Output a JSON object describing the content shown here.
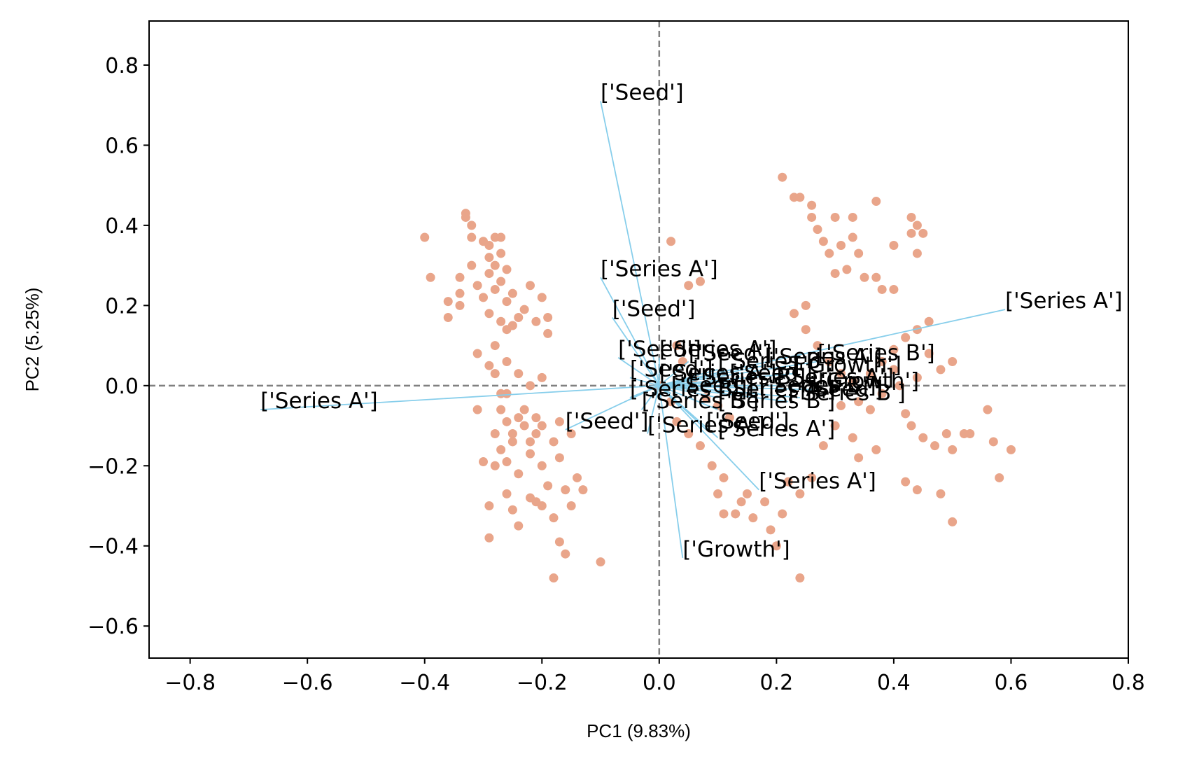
{
  "chart_data": {
    "type": "scatter",
    "xlabel": "PC1 (9.83%)",
    "ylabel": "PC2 (5.25%)",
    "xlim": [
      -0.87,
      0.8
    ],
    "ylim": [
      -0.68,
      0.91
    ],
    "xticks": [
      -0.8,
      -0.6,
      -0.4,
      -0.2,
      0.0,
      0.2,
      0.4,
      0.6,
      0.8
    ],
    "yticks": [
      -0.6,
      -0.4,
      -0.2,
      0.0,
      0.2,
      0.4,
      0.6,
      0.8
    ],
    "xtick_labels": [
      "−0.8",
      "−0.6",
      "−0.4",
      "−0.2",
      "0.0",
      "0.2",
      "0.4",
      "0.6",
      "0.8"
    ],
    "ytick_labels": [
      "−0.6",
      "−0.4",
      "−0.2",
      "0.0",
      "0.2",
      "0.4",
      "0.6",
      "0.8"
    ],
    "grid": false,
    "reference_lines": {
      "x": 0.0,
      "y": 0.0,
      "style": "dashed",
      "color": "#808080"
    },
    "colors": {
      "points": "#E9A58A",
      "vectors": "#87CEEB",
      "reference": "#808080"
    },
    "points": [
      [
        -0.4,
        0.37
      ],
      [
        -0.39,
        0.27
      ],
      [
        -0.36,
        0.21
      ],
      [
        -0.36,
        0.17
      ],
      [
        -0.34,
        0.23
      ],
      [
        -0.34,
        0.27
      ],
      [
        -0.34,
        0.2
      ],
      [
        -0.33,
        0.43
      ],
      [
        -0.33,
        0.42
      ],
      [
        -0.32,
        0.4
      ],
      [
        -0.32,
        0.37
      ],
      [
        -0.32,
        0.3
      ],
      [
        -0.31,
        0.25
      ],
      [
        -0.31,
        0.08
      ],
      [
        -0.3,
        0.36
      ],
      [
        -0.3,
        0.22
      ],
      [
        -0.29,
        0.35
      ],
      [
        -0.29,
        0.32
      ],
      [
        -0.29,
        0.28
      ],
      [
        -0.29,
        0.18
      ],
      [
        -0.29,
        0.05
      ],
      [
        -0.28,
        0.37
      ],
      [
        -0.28,
        0.3
      ],
      [
        -0.28,
        0.24
      ],
      [
        -0.28,
        0.1
      ],
      [
        -0.28,
        0.03
      ],
      [
        -0.27,
        0.37
      ],
      [
        -0.27,
        0.33
      ],
      [
        -0.27,
        0.26
      ],
      [
        -0.27,
        0.16
      ],
      [
        -0.26,
        0.29
      ],
      [
        -0.26,
        0.21
      ],
      [
        -0.26,
        0.14
      ],
      [
        -0.26,
        0.06
      ],
      [
        -0.25,
        0.23
      ],
      [
        -0.25,
        0.15
      ],
      [
        -0.24,
        0.17
      ],
      [
        -0.23,
        0.19
      ],
      [
        -0.22,
        0.25
      ],
      [
        -0.21,
        0.16
      ],
      [
        -0.2,
        0.22
      ],
      [
        -0.19,
        0.17
      ],
      [
        -0.19,
        0.13
      ],
      [
        -0.2,
        0.02
      ],
      [
        -0.22,
        0.0
      ],
      [
        -0.24,
        0.03
      ],
      [
        -0.26,
        -0.02
      ],
      [
        -0.27,
        -0.06
      ],
      [
        -0.28,
        -0.12
      ],
      [
        -0.27,
        -0.16
      ],
      [
        -0.26,
        -0.19
      ],
      [
        -0.25,
        -0.14
      ],
      [
        -0.24,
        -0.22
      ],
      [
        -0.23,
        -0.1
      ],
      [
        -0.22,
        -0.17
      ],
      [
        -0.21,
        -0.12
      ],
      [
        -0.2,
        -0.2
      ],
      [
        -0.19,
        -0.25
      ],
      [
        -0.18,
        -0.14
      ],
      [
        -0.17,
        -0.18
      ],
      [
        -0.16,
        -0.26
      ],
      [
        -0.15,
        -0.3
      ],
      [
        -0.14,
        -0.23
      ],
      [
        -0.13,
        -0.26
      ],
      [
        -0.28,
        -0.2
      ],
      [
        -0.29,
        -0.3
      ],
      [
        -0.3,
        -0.19
      ],
      [
        -0.31,
        -0.06
      ],
      [
        -0.29,
        -0.38
      ],
      [
        -0.26,
        -0.27
      ],
      [
        -0.25,
        -0.31
      ],
      [
        -0.24,
        -0.35
      ],
      [
        -0.22,
        -0.28
      ],
      [
        -0.21,
        -0.29
      ],
      [
        -0.2,
        -0.3
      ],
      [
        -0.18,
        -0.33
      ],
      [
        -0.17,
        -0.39
      ],
      [
        -0.16,
        -0.42
      ],
      [
        -0.18,
        -0.48
      ],
      [
        -0.1,
        -0.44
      ],
      [
        -0.23,
        -0.06
      ],
      [
        -0.2,
        -0.1
      ],
      [
        -0.17,
        -0.09
      ],
      [
        -0.15,
        -0.12
      ],
      [
        -0.24,
        -0.08
      ],
      [
        -0.26,
        -0.09
      ],
      [
        -0.25,
        -0.12
      ],
      [
        -0.22,
        -0.14
      ],
      [
        -0.21,
        -0.08
      ],
      [
        -0.27,
        -0.02
      ],
      [
        0.0,
        0.0
      ],
      [
        0.02,
        0.36
      ],
      [
        0.05,
        0.25
      ],
      [
        0.07,
        0.26
      ],
      [
        0.03,
        0.1
      ],
      [
        0.04,
        0.06
      ],
      [
        0.06,
        0.02
      ],
      [
        0.08,
        -0.03
      ],
      [
        0.1,
        -0.05
      ],
      [
        0.12,
        -0.08
      ],
      [
        0.02,
        -0.04
      ],
      [
        0.03,
        -0.09
      ],
      [
        0.05,
        -0.12
      ],
      [
        0.07,
        -0.15
      ],
      [
        0.09,
        -0.2
      ],
      [
        0.11,
        -0.23
      ],
      [
        0.1,
        -0.27
      ],
      [
        0.11,
        -0.32
      ],
      [
        0.13,
        -0.32
      ],
      [
        0.14,
        -0.29
      ],
      [
        0.15,
        -0.27
      ],
      [
        0.16,
        -0.33
      ],
      [
        0.19,
        -0.36
      ],
      [
        0.2,
        -0.4
      ],
      [
        0.18,
        -0.29
      ],
      [
        0.22,
        -0.24
      ],
      [
        0.24,
        -0.27
      ],
      [
        0.26,
        -0.23
      ],
      [
        0.24,
        -0.48
      ],
      [
        0.21,
        -0.32
      ],
      [
        0.21,
        0.52
      ],
      [
        0.23,
        0.47
      ],
      [
        0.24,
        0.47
      ],
      [
        0.26,
        0.45
      ],
      [
        0.26,
        0.42
      ],
      [
        0.27,
        0.39
      ],
      [
        0.28,
        0.36
      ],
      [
        0.3,
        0.42
      ],
      [
        0.31,
        0.35
      ],
      [
        0.33,
        0.42
      ],
      [
        0.33,
        0.37
      ],
      [
        0.34,
        0.33
      ],
      [
        0.32,
        0.29
      ],
      [
        0.3,
        0.28
      ],
      [
        0.35,
        0.27
      ],
      [
        0.37,
        0.27
      ],
      [
        0.38,
        0.24
      ],
      [
        0.4,
        0.24
      ],
      [
        0.37,
        0.46
      ],
      [
        0.4,
        0.35
      ],
      [
        0.43,
        0.38
      ],
      [
        0.43,
        0.42
      ],
      [
        0.44,
        0.4
      ],
      [
        0.45,
        0.38
      ],
      [
        0.44,
        0.33
      ],
      [
        0.29,
        0.33
      ],
      [
        0.25,
        0.2
      ],
      [
        0.23,
        0.18
      ],
      [
        0.25,
        0.14
      ],
      [
        0.27,
        0.1
      ],
      [
        0.29,
        0.06
      ],
      [
        0.31,
        0.03
      ],
      [
        0.33,
        0.01
      ],
      [
        0.34,
        -0.04
      ],
      [
        0.36,
        0.03
      ],
      [
        0.38,
        0.06
      ],
      [
        0.4,
        0.09
      ],
      [
        0.42,
        0.12
      ],
      [
        0.44,
        0.14
      ],
      [
        0.46,
        0.16
      ],
      [
        0.41,
        0.0
      ],
      [
        0.42,
        -0.07
      ],
      [
        0.43,
        -0.1
      ],
      [
        0.45,
        -0.13
      ],
      [
        0.47,
        -0.15
      ],
      [
        0.49,
        -0.12
      ],
      [
        0.5,
        -0.16
      ],
      [
        0.52,
        -0.12
      ],
      [
        0.53,
        -0.12
      ],
      [
        0.56,
        -0.06
      ],
      [
        0.57,
        -0.14
      ],
      [
        0.58,
        -0.23
      ],
      [
        0.6,
        -0.16
      ],
      [
        0.5,
        -0.34
      ],
      [
        0.48,
        -0.27
      ],
      [
        0.44,
        -0.26
      ],
      [
        0.42,
        -0.24
      ],
      [
        0.37,
        -0.16
      ],
      [
        0.34,
        -0.18
      ],
      [
        0.33,
        -0.13
      ],
      [
        0.31,
        -0.05
      ],
      [
        0.3,
        -0.1
      ],
      [
        0.28,
        -0.15
      ],
      [
        0.48,
        0.04
      ],
      [
        0.5,
        0.06
      ],
      [
        0.46,
        0.08
      ],
      [
        0.44,
        0.02
      ],
      [
        0.4,
        0.04
      ],
      [
        0.38,
        -0.02
      ],
      [
        0.36,
        -0.06
      ]
    ],
    "vectors": [
      {
        "x": -0.1,
        "y": 0.71,
        "label": "['Seed']"
      },
      {
        "x": -0.1,
        "y": 0.27,
        "label": "['Series A']"
      },
      {
        "x": -0.08,
        "y": 0.17,
        "label": "['Seed']"
      },
      {
        "x": 0.59,
        "y": 0.19,
        "label": "['Series A']"
      },
      {
        "x": -0.68,
        "y": -0.06,
        "label": "['Series A']"
      },
      {
        "x": -0.16,
        "y": -0.11,
        "label": "['Seed']"
      },
      {
        "x": 0.17,
        "y": -0.26,
        "label": "['Series A']"
      },
      {
        "x": 0.04,
        "y": -0.43,
        "label": "['Growth']"
      },
      {
        "x": 0.27,
        "y": 0.06,
        "label": "['Series B']"
      },
      {
        "x": -0.07,
        "y": 0.07,
        "label": "['Seed']"
      },
      {
        "x": 0.0,
        "y": 0.07,
        "label": "['Series A']"
      },
      {
        "x": 0.05,
        "y": 0.06,
        "label": "['Seed']"
      },
      {
        "x": 0.1,
        "y": 0.04,
        "label": "['Series B']"
      },
      {
        "x": 0.18,
        "y": 0.05,
        "label": "['Series A']"
      },
      {
        "x": 0.23,
        "y": 0.03,
        "label": "['Growth']"
      },
      {
        "x": -0.05,
        "y": 0.02,
        "label": "['Seed']"
      },
      {
        "x": 0.0,
        "y": 0.01,
        "label": "['Series A']"
      },
      {
        "x": 0.05,
        "y": 0.0,
        "label": "['Series B']"
      },
      {
        "x": 0.12,
        "y": 0.01,
        "label": "['Seed']"
      },
      {
        "x": 0.2,
        "y": 0.0,
        "label": "['Series A']"
      },
      {
        "x": 0.26,
        "y": -0.01,
        "label": "['Growth']"
      },
      {
        "x": -0.05,
        "y": -0.03,
        "label": "['Series B']"
      },
      {
        "x": 0.02,
        "y": -0.02,
        "label": "['Seed']"
      },
      {
        "x": 0.1,
        "y": -0.03,
        "label": "['Series A']"
      },
      {
        "x": 0.17,
        "y": -0.02,
        "label": "['Series B']"
      },
      {
        "x": 0.24,
        "y": -0.03,
        "label": "['Seed']"
      },
      {
        "x": -0.03,
        "y": -0.06,
        "label": "['Series B']"
      },
      {
        "x": 0.1,
        "y": -0.06,
        "label": "['Series B']"
      },
      {
        "x": -0.02,
        "y": -0.12,
        "label": "['Series A']"
      },
      {
        "x": 0.08,
        "y": -0.11,
        "label": "['Seed']"
      },
      {
        "x": 0.1,
        "y": -0.13,
        "label": "['Series A']"
      },
      {
        "x": 0.22,
        "y": -0.04,
        "label": "['Series B']"
      }
    ]
  }
}
